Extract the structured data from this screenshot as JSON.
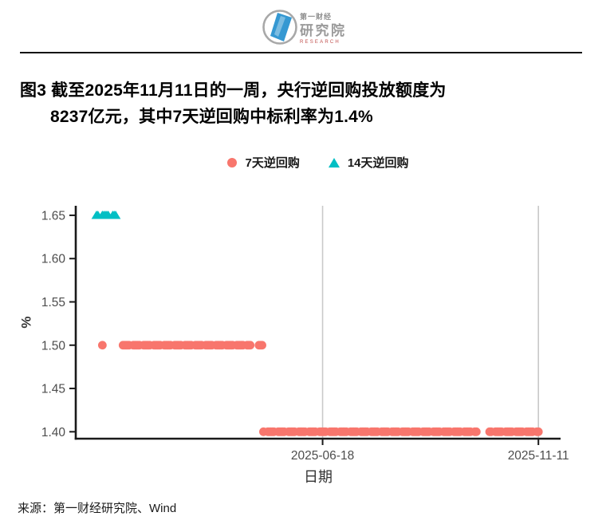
{
  "header": {
    "logo": {
      "brand_line1": "第一财经",
      "brand_line2": "研究院",
      "brand_line3": "RESEARCH"
    }
  },
  "figure": {
    "title_line1": "图3 截至2025年11月11日的一周，央行逆回购投放额度为",
    "title_line2": "8237亿元，其中7天逆回购中标利率为1.4%",
    "source": "来源：第一财经研究院、Wind"
  },
  "chart_data": {
    "type": "scatter",
    "title": "图3 截至2025年11月11日的一周，央行逆回购投放额度为8237亿元，其中7天逆回购中标利率为1.4%",
    "xlabel": "日期",
    "ylabel": "%",
    "x_domain": [
      "2025-01-02",
      "2025-11-26"
    ],
    "x_ticks": [
      "2025-06-18",
      "2025-11-11"
    ],
    "y_domain": [
      1.392,
      1.661
    ],
    "y_ticks": [
      1.4,
      1.45,
      1.5,
      1.55,
      1.6,
      1.65
    ],
    "grid": "vertical-gridlines-only",
    "grid_color": "#C9C9C9",
    "axis_color": "#1A1A1A",
    "tick_label_color": "#4D4D4D",
    "legend_position": "top-center",
    "point_frequency": "weekdays",
    "series": [
      {
        "id": "7d",
        "name": "7天逆回购",
        "marker": "circle",
        "color": "#F8766D",
        "unit": "%",
        "segments": [
          {
            "start": "2025-01-20",
            "end": "2025-01-20",
            "value": 1.5
          },
          {
            "start": "2025-02-03",
            "end": "2025-04-30",
            "value": 1.5
          },
          {
            "start": "2025-05-06",
            "end": "2025-05-08",
            "value": 1.5
          },
          {
            "start": "2025-05-09",
            "end": "2025-09-30",
            "value": 1.4
          },
          {
            "start": "2025-10-09",
            "end": "2025-11-11",
            "value": 1.4
          }
        ]
      },
      {
        "id": "14d",
        "name": "14天逆回购",
        "marker": "triangle",
        "color": "#00BFC4",
        "unit": "%",
        "segments": [
          {
            "start": "2025-01-16",
            "end": "2025-01-29",
            "value": 1.65
          }
        ]
      }
    ]
  }
}
